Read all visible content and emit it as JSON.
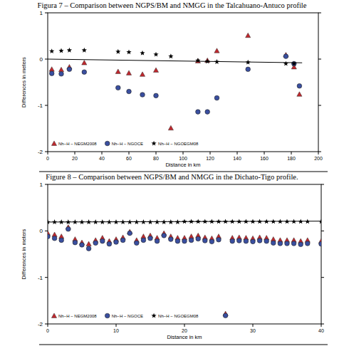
{
  "chart_data": [
    {
      "type": "scatter",
      "title": "Figura 7 – Comparison between NGPS/BM and NMGG in the Talcahuano-Antuco profile",
      "x_label": "Distance in km",
      "y_label": "Differences in meters",
      "xlim": [
        0,
        200
      ],
      "ylim": [
        -2,
        1
      ],
      "xticks": [
        0,
        20,
        40,
        60,
        80,
        100,
        120,
        140,
        160,
        180,
        200
      ],
      "yticks": [
        -2,
        -1,
        0,
        1
      ],
      "grid": false,
      "legend": "lower left",
      "series": [
        {
          "name": "Nh−H − NEGM2008",
          "color": "#c0272d",
          "marker": "triangle",
          "x": [
            3,
            10,
            16,
            27,
            52,
            60,
            70,
            80,
            91,
            111,
            118,
            125,
            148,
            176,
            182,
            186
          ],
          "values": [
            -0.22,
            -0.23,
            -0.17,
            -0.08,
            -0.27,
            -0.3,
            -0.33,
            -0.24,
            -1.49,
            -0.04,
            -0.03,
            0.18,
            0.51,
            0.09,
            -0.17,
            -0.76
          ]
        },
        {
          "name": "Nh−H − NGOCE",
          "color": "#3a4fa0",
          "marker": "circle",
          "x": [
            3,
            10,
            16,
            27,
            52,
            60,
            70,
            80,
            111,
            118,
            125,
            148,
            176,
            182,
            186
          ],
          "values": [
            -0.31,
            -0.32,
            -0.22,
            -0.28,
            -0.62,
            -0.7,
            -0.77,
            -0.79,
            -1.14,
            -1.14,
            -0.84,
            -0.22,
            0.06,
            -0.1,
            -0.58
          ]
        },
        {
          "name": "Nh−H − NGOEGM08",
          "color": "#000000",
          "marker": "star",
          "x": [
            3,
            10,
            16,
            27,
            52,
            60,
            70,
            80,
            91,
            111,
            118,
            125,
            148,
            176,
            182
          ],
          "values": [
            0.17,
            0.18,
            0.19,
            0.19,
            0.16,
            0.15,
            0.13,
            0.1,
            0.06,
            -0.03,
            -0.05,
            -0.06,
            -0.07,
            -0.1,
            -0.1
          ]
        },
        {
          "type": "line",
          "color": "#000000",
          "line_style": "solid",
          "x": [
            0,
            188
          ],
          "values": [
            0.0,
            -0.08
          ]
        }
      ]
    },
    {
      "type": "scatter",
      "title": "Figure 8 – Comparison between NGPS/BM and NMGG in the Dichato-Tigo profile.",
      "x_label": "Distance in km",
      "y_label": "Differences in meters",
      "xlim": [
        0,
        40
      ],
      "ylim": [
        -2,
        1
      ],
      "xticks": [
        0,
        10,
        20,
        30,
        40
      ],
      "yticks": [
        -2,
        -1,
        0,
        1
      ],
      "grid": false,
      "legend": "lower left",
      "series": [
        {
          "name": "Nh−H − NEGM2008",
          "color": "#c0272d",
          "marker": "triangle",
          "x": [
            0,
            1,
            2,
            3,
            4,
            5,
            6,
            7,
            8,
            9,
            10,
            11,
            12,
            13,
            14,
            15,
            16,
            17,
            18,
            19,
            20,
            21,
            22,
            23,
            24,
            25,
            26,
            27,
            28,
            29,
            30,
            31,
            32,
            33,
            34,
            35,
            36,
            37,
            38,
            40
          ],
          "values": [
            -0.05,
            -0.08,
            -0.12,
            0.08,
            -0.18,
            -0.25,
            -0.28,
            -0.2,
            -0.15,
            -0.22,
            -0.18,
            -0.14,
            -0.02,
            -0.2,
            -0.12,
            -0.1,
            -0.15,
            -0.05,
            -0.12,
            -0.15,
            -0.15,
            -0.12,
            -0.1,
            -0.14,
            -0.16,
            -0.12,
            -1.78,
            -0.15,
            -0.14,
            -0.15,
            -0.16,
            -0.14,
            -0.15,
            -0.18,
            -0.2,
            -0.2,
            -0.2,
            -0.22,
            -0.2,
            -0.22
          ]
        },
        {
          "name": "Nh−H − NGOCE",
          "color": "#3a4fa0",
          "marker": "circle",
          "x": [
            0,
            1,
            2,
            3,
            4,
            5,
            6,
            7,
            8,
            9,
            10,
            11,
            12,
            13,
            14,
            15,
            16,
            17,
            18,
            19,
            20,
            21,
            22,
            23,
            24,
            25,
            26,
            27,
            28,
            29,
            30,
            31,
            32,
            33,
            34,
            35,
            36,
            37,
            38,
            40
          ],
          "values": [
            -0.12,
            -0.16,
            -0.2,
            0.04,
            -0.25,
            -0.3,
            -0.38,
            -0.26,
            -0.22,
            -0.28,
            -0.24,
            -0.2,
            -0.05,
            -0.26,
            -0.2,
            -0.16,
            -0.22,
            -0.1,
            -0.18,
            -0.22,
            -0.22,
            -0.2,
            -0.17,
            -0.21,
            -0.23,
            -0.19,
            -1.82,
            -0.22,
            -0.21,
            -0.22,
            -0.23,
            -0.21,
            -0.22,
            -0.26,
            -0.27,
            -0.27,
            -0.27,
            -0.29,
            -0.27,
            -0.28
          ]
        },
        {
          "name": "Nh−H − NGOEGM08",
          "color": "#000000",
          "marker": "star",
          "x": [
            0,
            1,
            2,
            3,
            4,
            5,
            6,
            7,
            8,
            9,
            10,
            11,
            12,
            13,
            14,
            15,
            16,
            17,
            18,
            19,
            20,
            21,
            22,
            23,
            24,
            25,
            26,
            27,
            28,
            29,
            30,
            31,
            32,
            33,
            34,
            35,
            36,
            37,
            38,
            40
          ],
          "values": [
            0.19,
            0.19,
            0.19,
            0.19,
            0.19,
            0.19,
            0.19,
            0.19,
            0.19,
            0.19,
            0.19,
            0.19,
            0.19,
            0.19,
            0.19,
            0.19,
            0.19,
            0.19,
            0.19,
            0.19,
            0.2,
            0.2,
            0.2,
            0.2,
            0.2,
            0.2,
            0.2,
            0.2,
            0.2,
            0.2,
            0.2,
            0.2,
            0.2,
            0.2,
            0.2,
            0.2,
            0.2,
            0.2,
            0.2,
            0.2
          ]
        },
        {
          "type": "line",
          "color": "#000000",
          "line_style": "solid",
          "x": [
            0,
            40
          ],
          "values": [
            0.19,
            0.21
          ]
        }
      ]
    }
  ]
}
